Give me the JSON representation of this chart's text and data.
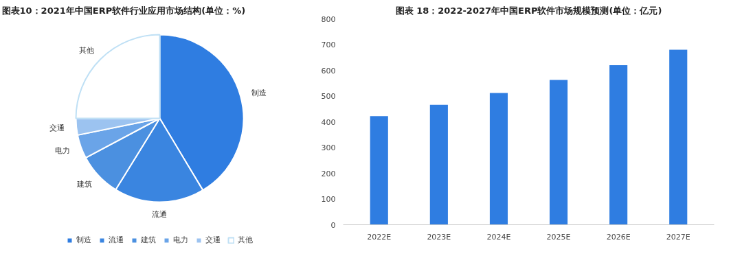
{
  "chart_data": [
    {
      "type": "pie",
      "title": "图表10：2021年中国ERP软件行业应用市场结构(单位：%)",
      "categories": [
        "制造",
        "流通",
        "建筑",
        "电力",
        "交通",
        "其他"
      ],
      "values": [
        41.4,
        17.4,
        8.4,
        4.6,
        3.2,
        25.0
      ],
      "colors": [
        "#2f7de1",
        "#3a85e0",
        "#4b90e0",
        "#6aa4e8",
        "#9cc3f0",
        "#ffffff"
      ],
      "legend": "bottom"
    },
    {
      "type": "bar",
      "title": "图表 18：2022-2027年中国ERP软件市场规模预测(单位：亿元)",
      "categories": [
        "2022E",
        "2023E",
        "2024E",
        "2025E",
        "2026E",
        "2027E"
      ],
      "values": [
        422,
        466,
        512,
        563,
        620,
        680
      ],
      "color": "#2f7de1",
      "ylim": [
        0,
        800
      ],
      "yticks": [
        0,
        100,
        200,
        300,
        400,
        500,
        600,
        700,
        800
      ],
      "grid": false
    }
  ]
}
